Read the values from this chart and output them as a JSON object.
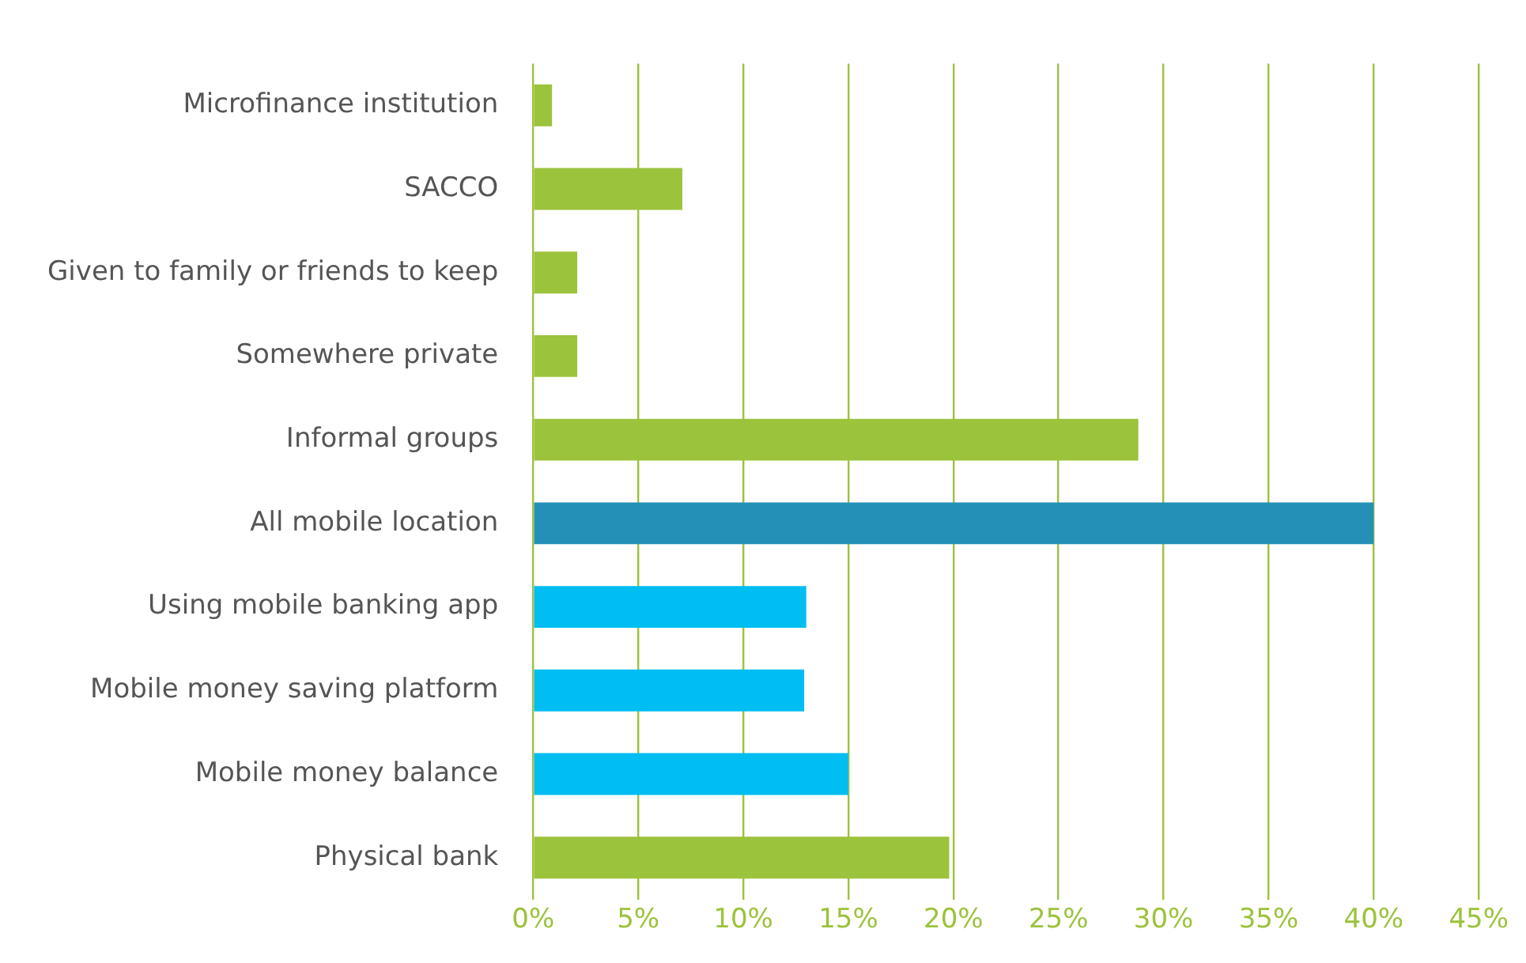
{
  "chart_data": {
    "type": "bar",
    "orientation": "horizontal",
    "categories": [
      "Microfinance institution",
      "SACCO",
      "Given to family or friends to keep",
      "Somewhere private",
      "Informal groups",
      "All mobile location",
      "Using mobile banking app",
      "Mobile money saving platform",
      "Mobile money balance",
      "Physical bank"
    ],
    "values": [
      0.9,
      7.1,
      2.1,
      2.1,
      28.8,
      40,
      13,
      12.9,
      15,
      19.8
    ],
    "colors": [
      "#9bc33c",
      "#9bc33c",
      "#9bc33c",
      "#9bc33c",
      "#9bc33c",
      "#2490b8",
      "#00bdf2",
      "#00bdf2",
      "#00bdf2",
      "#9bc33c"
    ],
    "xlim": [
      0,
      45
    ],
    "xticks": [
      {
        "value": 0,
        "label": "0%"
      },
      {
        "value": 5,
        "label": "5%"
      },
      {
        "value": 10,
        "label": "10%"
      },
      {
        "value": 15,
        "label": "15%"
      },
      {
        "value": 20,
        "label": "20%"
      },
      {
        "value": 25,
        "label": "25%"
      },
      {
        "value": 30,
        "label": "30%"
      },
      {
        "value": 35,
        "label": "35%"
      },
      {
        "value": 40,
        "label": "40%"
      },
      {
        "value": 45,
        "label": "45%"
      }
    ],
    "grid": "x",
    "legend": false
  }
}
